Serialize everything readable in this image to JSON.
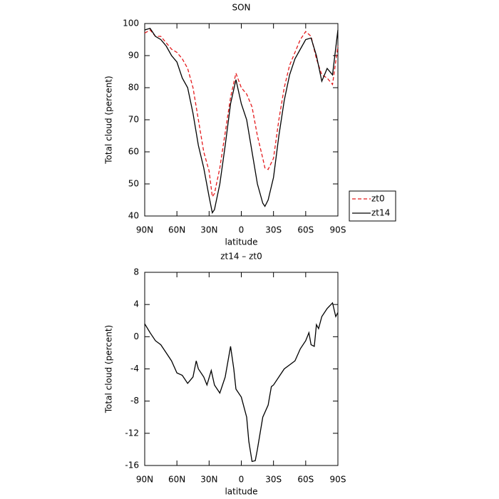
{
  "chart_data": [
    {
      "type": "line",
      "title": "SON",
      "x_label": "latitude",
      "y_label": "Total cloud (percent)",
      "x": [
        90,
        85,
        80,
        75,
        70,
        65,
        60,
        55,
        50,
        45,
        40,
        35,
        30,
        27,
        25,
        20,
        15,
        10,
        5,
        0,
        -5,
        -10,
        -15,
        -20,
        -22,
        -25,
        -30,
        -35,
        -40,
        -45,
        -50,
        -55,
        -60,
        -65,
        -70,
        -75,
        -80,
        -85,
        -90
      ],
      "series": [
        {
          "name": "zt0",
          "color": "#e41a1c",
          "line_style": "dashed",
          "values": [
            97,
            98,
            96,
            96,
            94,
            92,
            91,
            89,
            86,
            80,
            70,
            60,
            54,
            46,
            47,
            55,
            66,
            77,
            84.5,
            80,
            78,
            74,
            65,
            58,
            55,
            54.5,
            58,
            70,
            80,
            87,
            91,
            95,
            97.5,
            96,
            89,
            84,
            83,
            81,
            93
          ]
        },
        {
          "name": "zt14",
          "color": "#000000",
          "line_style": "solid",
          "values": [
            98,
            98.5,
            96,
            95,
            93,
            90,
            88,
            83,
            80,
            72,
            62,
            55,
            46,
            41,
            42,
            50,
            62,
            75,
            82.5,
            75,
            70,
            60,
            50,
            44,
            43,
            45,
            52,
            65,
            76,
            84,
            89,
            92,
            95,
            95.5,
            90,
            82,
            86,
            84,
            98
          ]
        }
      ],
      "xlim": [
        90,
        -90
      ],
      "xticks": [
        {
          "value": 90,
          "label": "90N"
        },
        {
          "value": 60,
          "label": "60N"
        },
        {
          "value": 30,
          "label": "30N"
        },
        0,
        {
          "value": -30,
          "label": "30S"
        },
        {
          "value": -60,
          "label": "60S"
        },
        {
          "value": -90,
          "label": "90S"
        }
      ],
      "ylim": [
        40,
        100
      ],
      "yticks": [
        40,
        50,
        60,
        70,
        80,
        90,
        100
      ],
      "legend": "outside right"
    },
    {
      "type": "line",
      "title": "zt14 – zt0",
      "x_label": "latitude",
      "y_label": "Total cloud (percent)",
      "x": [
        90,
        85,
        80,
        75,
        70,
        65,
        60,
        55,
        50,
        45,
        42,
        40,
        35,
        32,
        28,
        25,
        20,
        15,
        10,
        7,
        5,
        0,
        -5,
        -7,
        -10,
        -13,
        -15,
        -20,
        -25,
        -28,
        -30,
        -35,
        -40,
        -45,
        -50,
        -55,
        -60,
        -63,
        -65,
        -68,
        -70,
        -72,
        -75,
        -80,
        -85,
        -88,
        -90
      ],
      "values": [
        1.6,
        0.5,
        -0.5,
        -1,
        -2,
        -3,
        -4.5,
        -4.8,
        -5.8,
        -5,
        -3,
        -4,
        -5,
        -6,
        -4.2,
        -6,
        -7,
        -5,
        -1.2,
        -4,
        -6.5,
        -7.5,
        -10,
        -13,
        -15.5,
        -15.4,
        -14,
        -10,
        -8.5,
        -6.2,
        -6,
        -5,
        -4,
        -3.5,
        -3,
        -1.5,
        -0.5,
        0.5,
        -1,
        -1.2,
        1.5,
        1,
        2.5,
        3.5,
        4.2,
        2.5,
        3
      ],
      "color": "#000000",
      "xlim": [
        90,
        -90
      ],
      "xticks": [
        {
          "value": 90,
          "label": "90N"
        },
        {
          "value": 60,
          "label": "60N"
        },
        {
          "value": 30,
          "label": "30N"
        },
        0,
        {
          "value": -30,
          "label": "30S"
        },
        {
          "value": -60,
          "label": "60S"
        },
        {
          "value": -90,
          "label": "90S"
        }
      ],
      "ylim": [
        -16,
        8
      ],
      "yticks": [
        -16,
        -12,
        -8,
        -4,
        0,
        4,
        8
      ]
    }
  ]
}
